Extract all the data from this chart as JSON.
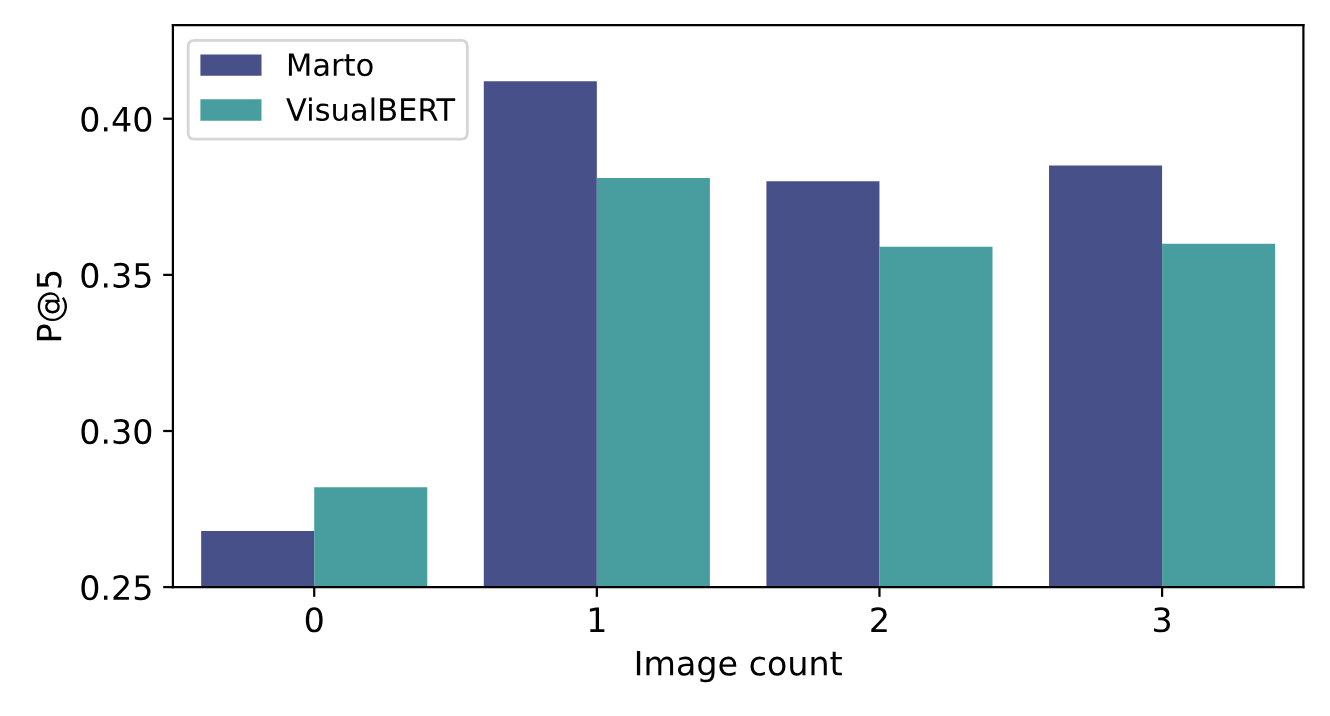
{
  "chart_data": {
    "type": "bar",
    "xlabel": "Image count",
    "ylabel": "P@5",
    "categories": [
      "0",
      "1",
      "2",
      "3"
    ],
    "series": [
      {
        "name": "Marto",
        "color": "#48508a",
        "values": [
          0.268,
          0.412,
          0.38,
          0.385
        ]
      },
      {
        "name": "VisualBERT",
        "color": "#489e9e",
        "values": [
          0.282,
          0.381,
          0.359,
          0.36
        ]
      }
    ],
    "ylim": [
      0.25,
      0.43
    ],
    "yticks": [
      {
        "value": 0.25,
        "label": "0.25"
      },
      {
        "value": 0.3,
        "label": "0.30"
      },
      {
        "value": 0.35,
        "label": "0.35"
      },
      {
        "value": 0.4,
        "label": "0.40"
      }
    ],
    "legend": "top left",
    "grid": false
  }
}
